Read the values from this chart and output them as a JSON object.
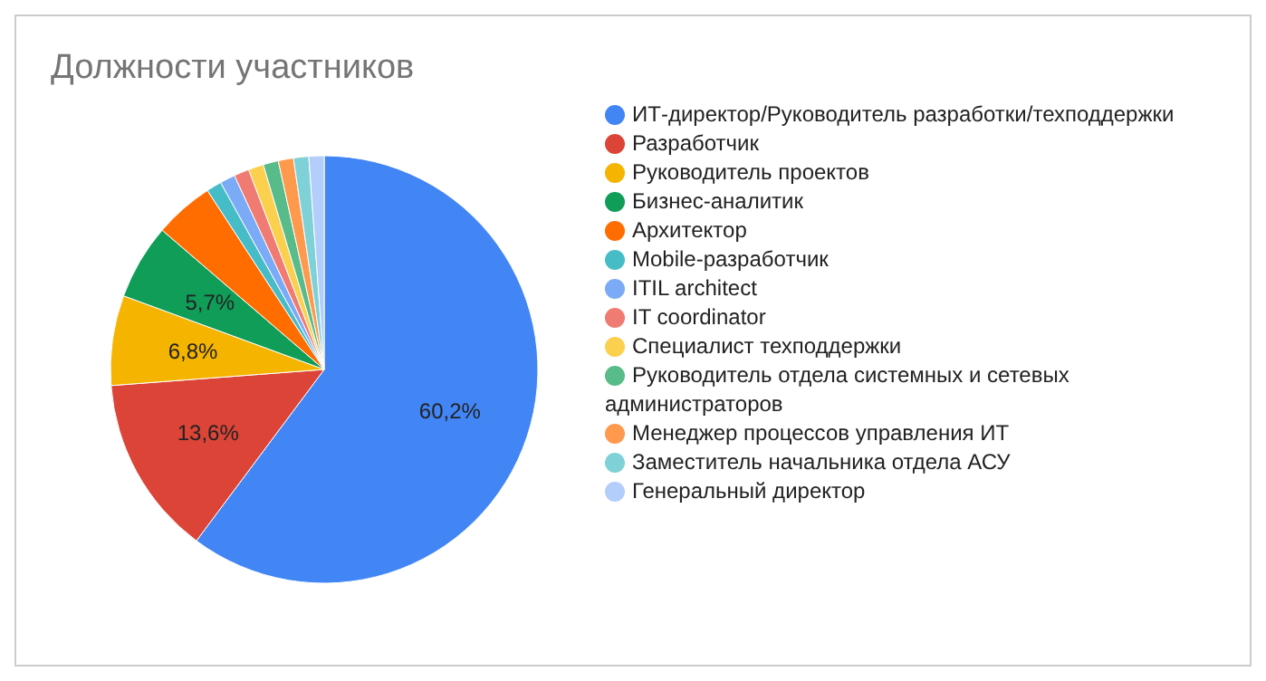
{
  "chart_data": {
    "type": "pie",
    "title": "Должности участников",
    "categories": [
      "ИТ-директор/Руководитель разработки/техподдержки",
      "Разработчик",
      "Руководитель проектов",
      "Бизнес-аналитик",
      "Архитектор",
      "Mobile-разработчик",
      "ITIL architect",
      "IT coordinator",
      "Специалист техподдержки",
      "Руководитель отдела системных и сетевых администраторов",
      "Менеджер процессов управления ИТ",
      "Заместитель начальника отдела АСУ",
      "Генеральный директор"
    ],
    "values": [
      60.2,
      13.6,
      6.8,
      5.7,
      4.5,
      1.15,
      1.15,
      1.15,
      1.15,
      1.15,
      1.15,
      1.15,
      1.15
    ],
    "value_labels": [
      "60,2%",
      "13,6%",
      "6,8%",
      "5,7%",
      null,
      null,
      null,
      null,
      null,
      null,
      null,
      null,
      null
    ],
    "colors": [
      "#4285f4",
      "#db4437",
      "#f4b400",
      "#0f9d58",
      "#ff6d01",
      "#46bdc6",
      "#7baaf7",
      "#f07b72",
      "#fcd04f",
      "#57bb8a",
      "#ff994d",
      "#7ed1d7",
      "#b3cefb"
    ],
    "legend": "right"
  }
}
